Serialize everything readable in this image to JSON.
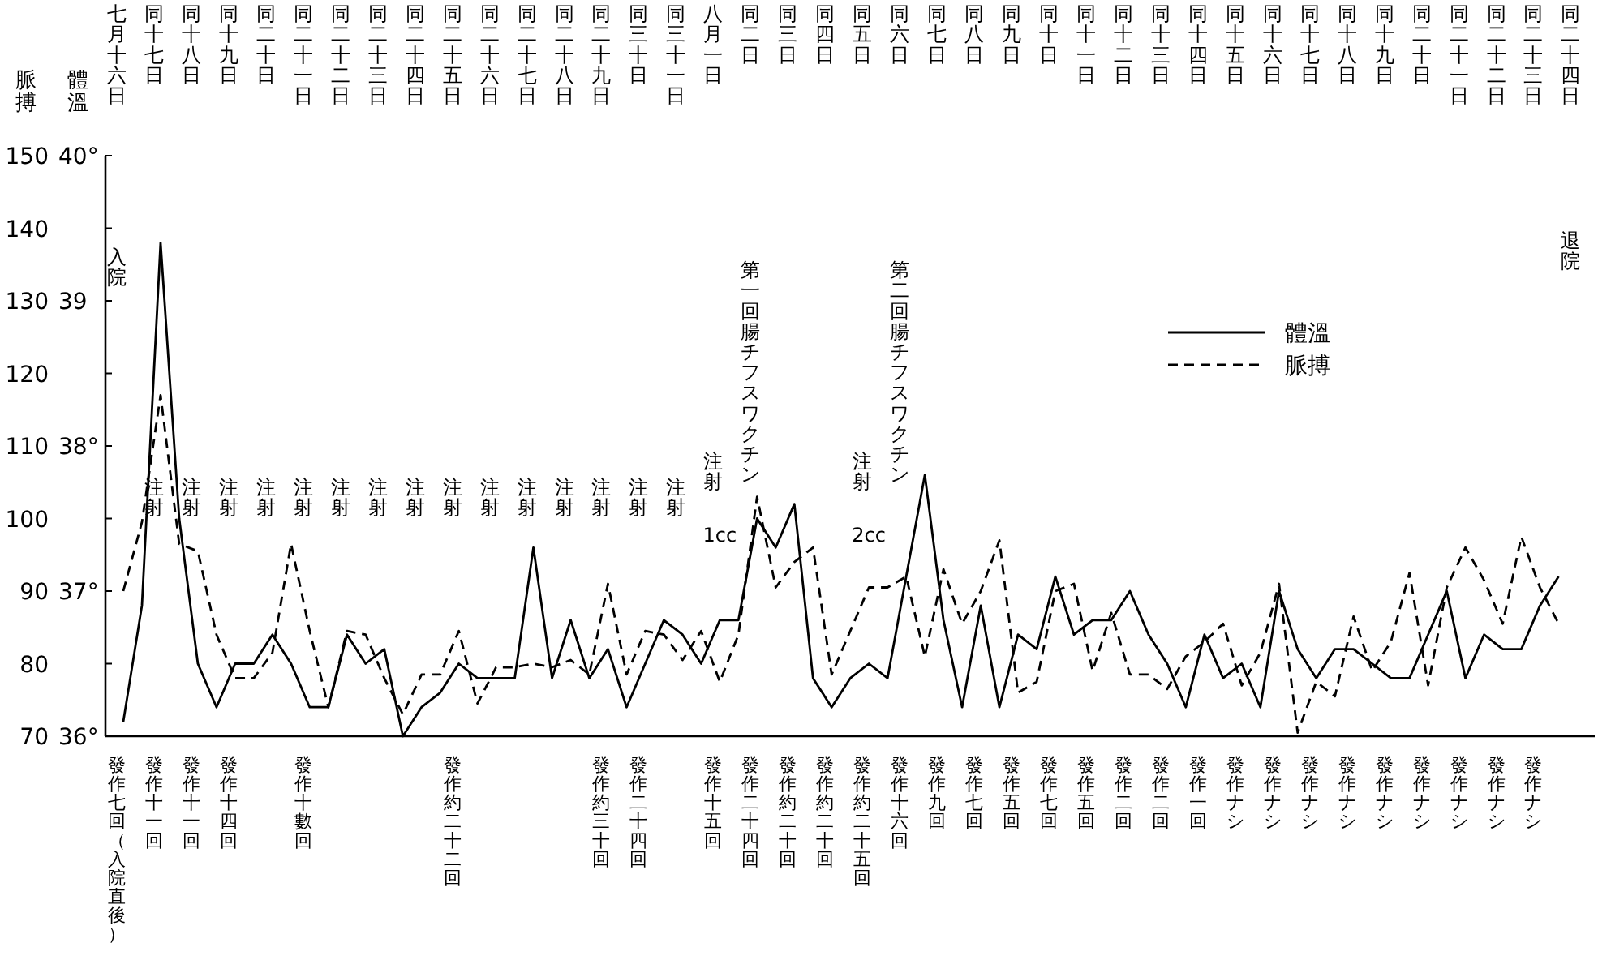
{
  "chart_data": {
    "type": "line",
    "categories": [
      "七月十六日",
      null,
      "同十七日",
      null,
      "同十八日",
      null,
      "同十九日",
      null,
      "同二十日",
      null,
      "同二十一日",
      null,
      "同二十二日",
      null,
      "同二十三日",
      null,
      "同二十四日",
      null,
      "同二十五日",
      null,
      "同二十六日",
      null,
      "同二十七日",
      null,
      "同二十八日",
      null,
      "同二十九日",
      null,
      "同三十日",
      null,
      "同三十一日",
      null,
      "八月一日",
      null,
      "同二日",
      null,
      "同三日",
      null,
      "同四日",
      null,
      "同五日",
      null,
      "同六日",
      null,
      "同七日",
      null,
      "同八日",
      null,
      "同九日",
      null,
      "同十日",
      null,
      "同十一日",
      null,
      "同十二日",
      null,
      "同十三日",
      null,
      "同十四日",
      null,
      "同十五日",
      null,
      "同十六日",
      null,
      "同十七日",
      null,
      "同十八日",
      null,
      "同十九日",
      null,
      "同二十日",
      null,
      "同二十一日",
      null,
      "同二十二日",
      null,
      "同二十三日",
      null,
      "同二十四日",
      null
    ],
    "ylabel": "脈搏",
    "y2label": "體溫",
    "ylim": [
      70,
      150
    ],
    "yticks": [
      70,
      80,
      90,
      100,
      110,
      120,
      130,
      140,
      150
    ],
    "y2lim": [
      36,
      40
    ],
    "y2ticks": [
      {
        "value": 36,
        "label": "36°"
      },
      {
        "value": 37,
        "label": "37°"
      },
      {
        "value": 38,
        "label": "38°"
      },
      {
        "value": 39,
        "label": "39"
      },
      {
        "value": 40,
        "label": "40°"
      }
    ],
    "grid": false,
    "legend": "top right",
    "marker": "none",
    "series": [
      {
        "name": "體溫",
        "color": "#000000",
        "line_style": "solid",
        "axis": "y2",
        "values": [
          36.1,
          36.9,
          39.4,
          37.5,
          36.5,
          36.2,
          36.5,
          36.5,
          36.7,
          36.5,
          36.2,
          36.2,
          36.7,
          36.5,
          36.6,
          36.0,
          36.2,
          36.3,
          36.5,
          36.4,
          36.4,
          36.4,
          37.3,
          36.4,
          36.8,
          36.4,
          36.6,
          36.2,
          36.5,
          36.8,
          36.7,
          36.5,
          36.8,
          36.8,
          37.5,
          37.3,
          37.6,
          36.4,
          36.2,
          36.4,
          36.5,
          36.4,
          37.1,
          37.8,
          36.8,
          36.2,
          36.9,
          36.2,
          36.7,
          36.6,
          37.1,
          36.7,
          36.8,
          36.8,
          37.0,
          36.7,
          36.5,
          36.2,
          36.7,
          36.4,
          36.5,
          36.2,
          37.0,
          36.6,
          36.4,
          36.6,
          36.6,
          36.5,
          36.4,
          36.4,
          36.7,
          37.0,
          36.4,
          36.7,
          36.6,
          36.6,
          36.9,
          37.1,
          null,
          null
        ]
      },
      {
        "name": "脈搏",
        "color": "#000000",
        "line_style": "dashed",
        "values": [
          90,
          99.5,
          117,
          96.5,
          95.5,
          84,
          78,
          78,
          81.5,
          96.5,
          84.5,
          74,
          84.5,
          84,
          78,
          73,
          78.5,
          78.5,
          84.5,
          74.5,
          79.5,
          79.5,
          80,
          79.5,
          80.5,
          78.5,
          91,
          78.5,
          84.5,
          84,
          80.5,
          84.5,
          77.5,
          84,
          103,
          90.5,
          94,
          96,
          78.5,
          84.5,
          90.5,
          90.5,
          92,
          81,
          93,
          85.5,
          90,
          97,
          76,
          77.5,
          90,
          91,
          79,
          87,
          78.5,
          78.5,
          76.5,
          81,
          83,
          85.5,
          77,
          81.5,
          91,
          70.5,
          77.5,
          75.5,
          86.5,
          79,
          83,
          92.5,
          77,
          90.5,
          96,
          91.5,
          85.5,
          97.5,
          90.5,
          85.5,
          null,
          null
        ]
      }
    ],
    "annotations": [
      "入院",
      "注射",
      "注射",
      "注射",
      "注射",
      "注射",
      "注射",
      "注射",
      "注射",
      "注射",
      "注射",
      "注射",
      "注射",
      "注射",
      "注射",
      "注射",
      "注射",
      "1cc",
      "第一回腸チフスワクチン",
      "注射",
      "2cc",
      "第二回腸チフスワクチン",
      "退院",
      "發作七回（入院直後）",
      "發作十一回",
      "發作十一回",
      "發作十四回",
      "發作十數回",
      "發作約二十二回",
      "發作約三十回",
      "發作二十四回",
      "發作十五回",
      "發作二十四回",
      "發作約二十回",
      "發作約二十回",
      "發作約二十五回",
      "發作十六回",
      "發作九回",
      "發作七回",
      "發作五回",
      "發作七回",
      "發作五回",
      "發作二回",
      "發作二回",
      "發作一回",
      "發作ナシ",
      "發作ナシ",
      "發作ナシ",
      "發作ナシ",
      "發作ナシ",
      "發作ナシ",
      "發作ナシ",
      "發作ナシ",
      "發作ナシ"
    ]
  }
}
